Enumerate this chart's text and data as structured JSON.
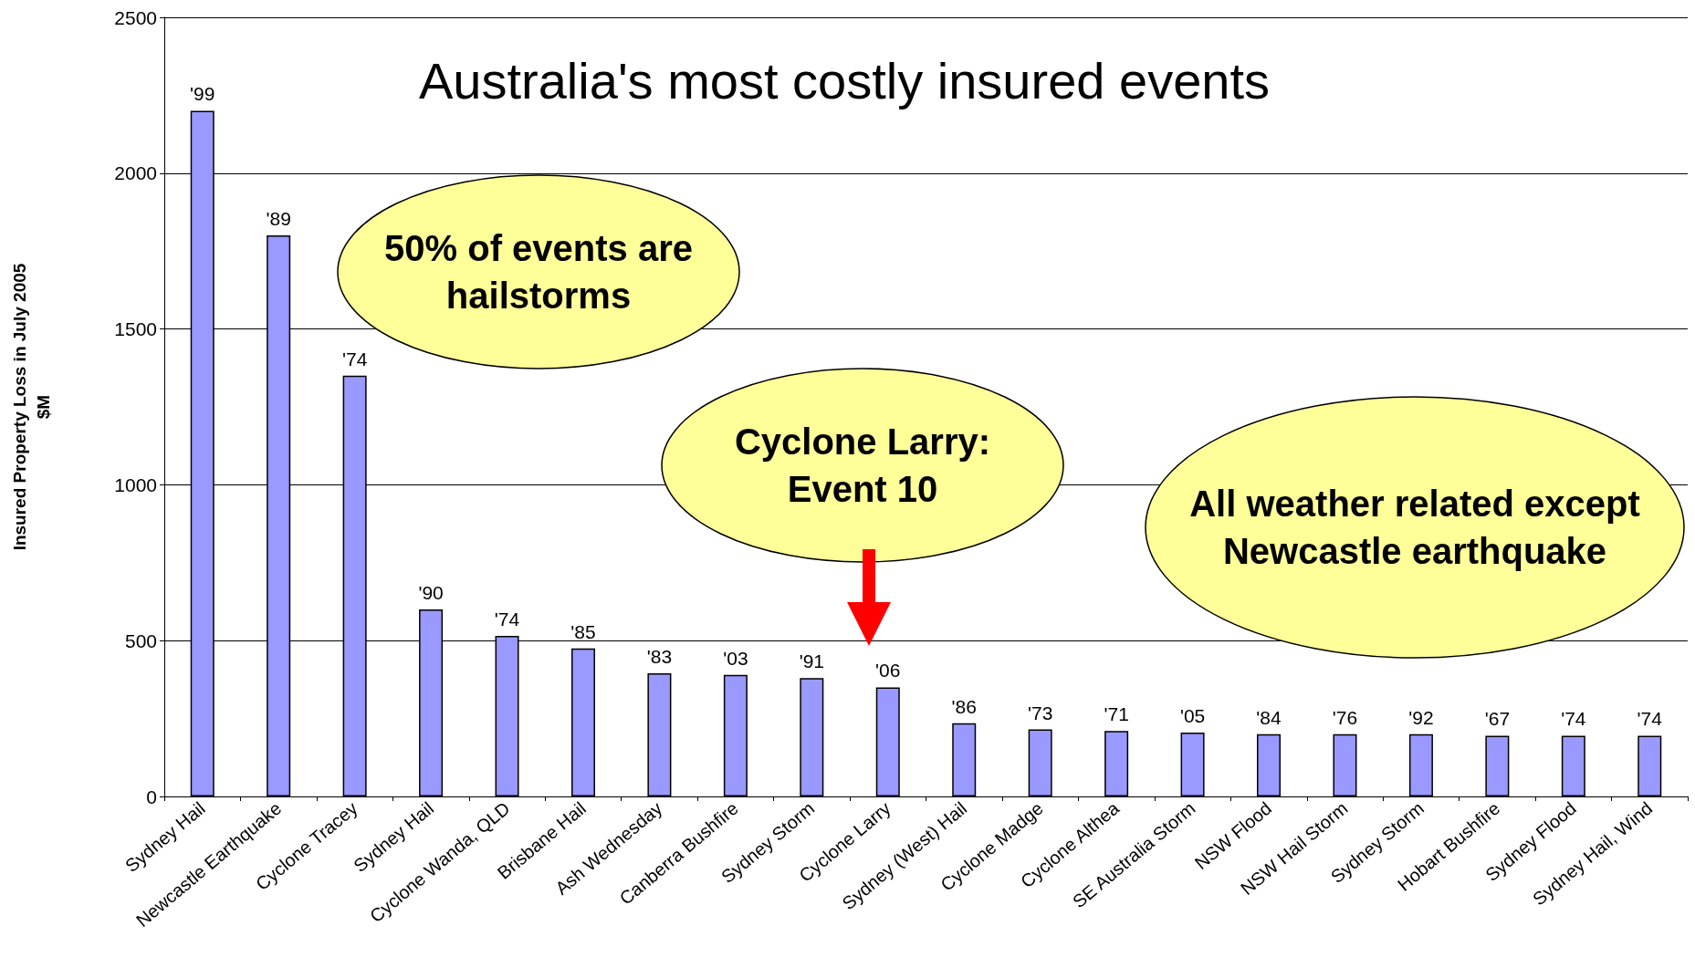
{
  "chart_data": {
    "type": "bar",
    "title": "Australia's most costly insured events",
    "ylabel": "Insured Property Loss in July 2005\n$M",
    "categories": [
      "Sydney Hail",
      "Newcastle Earthquake",
      "Cyclone Tracey",
      "Sydney Hail",
      "Cyclone Wanda, QLD",
      "Brisbane Hail",
      "Ash Wednesday",
      "Canberra Bushfire",
      "Sydney Storm",
      "Cyclone Larry",
      "Sydney (West) Hail",
      "Cyclone Madge",
      "Cyclone Althea",
      "SE Australia Storm",
      "NSW Flood",
      "NSW Hail Storm",
      "Sydney Storm",
      "Hobart Bushfire",
      "Sydney Flood",
      "Sydney Hail, Wind"
    ],
    "values": [
      2200,
      1800,
      1350,
      600,
      515,
      475,
      395,
      390,
      380,
      350,
      235,
      215,
      210,
      205,
      200,
      200,
      200,
      195,
      195,
      195
    ],
    "color": "#9999ff",
    "ylim": [
      0,
      2500
    ],
    "yticks": [
      0,
      500,
      1000,
      1500,
      2000,
      2500
    ],
    "grid": "y",
    "annotations": [
      "50% of events are\nhailstorms",
      "Cyclone Larry:\nEvent 10",
      "All weather related except\nNewcastle earthquake",
      {
        "text": "'99",
        "x": "Sydney Hail",
        "y": 2200
      },
      {
        "text": "'89",
        "x": "Newcastle Earthquake",
        "y": 1800
      },
      {
        "text": "'74",
        "x": "Cyclone Tracey",
        "y": 1350
      },
      {
        "text": "'90",
        "y": 600
      },
      {
        "text": "'74",
        "x": "Cyclone Wanda, QLD",
        "y": 515
      },
      {
        "text": "'85",
        "x": "Brisbane Hail",
        "y": 475
      },
      {
        "text": "'83",
        "x": "Ash Wednesday",
        "y": 395
      },
      {
        "text": "'03",
        "x": "Canberra Bushfire",
        "y": 390
      },
      {
        "text": "'91",
        "x": "Sydney Storm",
        "y": 380
      },
      {
        "text": "'06",
        "x": "Cyclone Larry",
        "y": 350
      },
      {
        "text": "'86",
        "x": "Sydney (West) Hail",
        "y": 235
      },
      {
        "text": "'73",
        "x": "Cyclone Madge",
        "y": 215
      },
      {
        "text": "'71",
        "x": "Cyclone Althea",
        "y": 210
      },
      {
        "text": "'05",
        "x": "SE Australia Storm",
        "y": 205
      },
      {
        "text": "'84",
        "x": "NSW Flood",
        "y": 200
      },
      {
        "text": "'76",
        "x": "NSW Hail Storm",
        "y": 200
      },
      {
        "text": "'92",
        "y": 200
      },
      {
        "text": "'67",
        "x": "Hobart Bushfire",
        "y": 195
      },
      {
        "text": "'74",
        "x": "Sydney Flood",
        "y": 195
      },
      {
        "text": "'74",
        "x": "Sydney Hail, Wind",
        "y": 195
      }
    ]
  }
}
